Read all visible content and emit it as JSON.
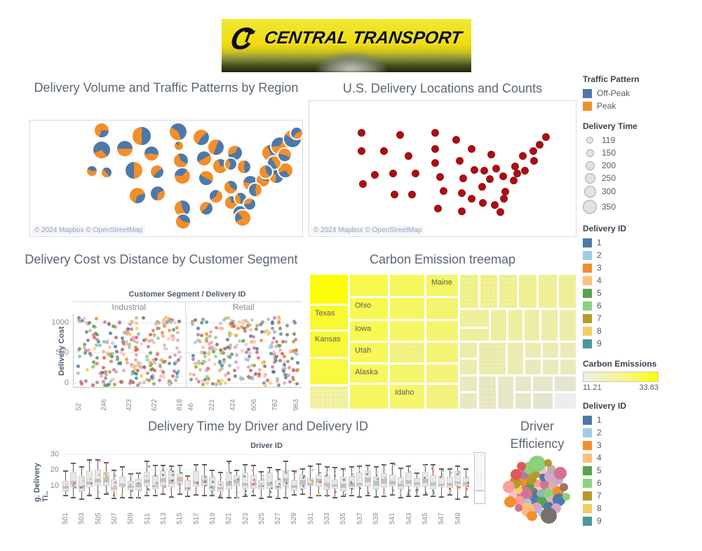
{
  "logo": {
    "brand": "CENTRAL TRANSPORT",
    "monogram": "CT"
  },
  "palette": [
    "#4e79a7",
    "#a0cbe8",
    "#f28e2b",
    "#ffbe7d",
    "#59a14f",
    "#8cd17d",
    "#b6992d",
    "#f1ce63",
    "#499894",
    "#86bcb6",
    "#e15759",
    "#ff9d9a",
    "#79706e",
    "#bab0ac",
    "#d37295",
    "#fabfd2",
    "#b07aa1",
    "#d4a6c8",
    "#9d7660",
    "#d7b5a6"
  ],
  "legends": {
    "traffic_pattern": {
      "title": "Traffic Pattern",
      "items": [
        {
          "label": "Off-Peak",
          "color": "#4e79a7"
        },
        {
          "label": "Peak",
          "color": "#f28e2b"
        }
      ]
    },
    "delivery_time": {
      "title": "Delivery Time",
      "items": [
        {
          "label": "119",
          "d": 10
        },
        {
          "label": "150",
          "d": 11
        },
        {
          "label": "200",
          "d": 13
        },
        {
          "label": "250",
          "d": 15
        },
        {
          "label": "300",
          "d": 17
        },
        {
          "label": "350",
          "d": 20
        }
      ]
    },
    "delivery_id": {
      "title": "Delivery ID",
      "items": [
        {
          "label": "1",
          "color": "#4e79a7"
        },
        {
          "label": "2",
          "color": "#a0cbe8"
        },
        {
          "label": "3",
          "color": "#f28e2b"
        },
        {
          "label": "4",
          "color": "#ffbe7d"
        },
        {
          "label": "5",
          "color": "#59a14f"
        },
        {
          "label": "6",
          "color": "#8cd17d"
        },
        {
          "label": "7",
          "color": "#b6992d"
        },
        {
          "label": "8",
          "color": "#f1ce63"
        },
        {
          "label": "9",
          "color": "#499894"
        }
      ]
    },
    "carbon_emissions": {
      "title": "Carbon Emissions",
      "min": "11.21",
      "max": "33.83",
      "gradient": [
        "#eeeee6",
        "#ffff00"
      ]
    },
    "delivery_id_2": {
      "title": "Delivery ID",
      "items": [
        {
          "label": "1",
          "color": "#4e79a7"
        },
        {
          "label": "2",
          "color": "#a0cbe8"
        },
        {
          "label": "3",
          "color": "#f28e2b"
        },
        {
          "label": "4",
          "color": "#ffbe7d"
        },
        {
          "label": "5",
          "color": "#59a14f"
        },
        {
          "label": "6",
          "color": "#8cd17d"
        },
        {
          "label": "7",
          "color": "#b6992d"
        },
        {
          "label": "8",
          "color": "#f1ce63"
        },
        {
          "label": "9",
          "color": "#499894"
        }
      ]
    }
  },
  "chart_data": [
    {
      "type": "pie-map",
      "title": "Delivery Volume and Traffic Patterns by Region",
      "attribution": "© 2024 Mapbox © OpenStreetMap",
      "legend": [
        "Off-Peak",
        "Peak"
      ],
      "colors": {
        "peak": "#f28e2b",
        "offpeak": "#4e79a7"
      },
      "size_encoding": {
        "field": "Delivery Time",
        "range": [
          119,
          350
        ]
      },
      "pies": [
        [
          100,
          12,
          10,
          0.7,
          200
        ],
        [
          157,
          20,
          13,
          0.5,
          180
        ],
        [
          209,
          14,
          12,
          0.4,
          160
        ],
        [
          242,
          22,
          11,
          0.55,
          210
        ],
        [
          100,
          40,
          12,
          0.3,
          140
        ],
        [
          133,
          38,
          11,
          0.5,
          90
        ],
        [
          171,
          45,
          10,
          0.45,
          100
        ],
        [
          210,
          34,
          6,
          0.85,
          0
        ],
        [
          263,
          36,
          11,
          0.5,
          200
        ],
        [
          290,
          44,
          10,
          0.38,
          250
        ],
        [
          340,
          44,
          11,
          0.52,
          150
        ],
        [
          354,
          34,
          12,
          0.65,
          30
        ],
        [
          372,
          24,
          12,
          0.42,
          300
        ],
        [
          378,
          16,
          8,
          0.45,
          60
        ],
        [
          213,
          55,
          10,
          0.6,
          120
        ],
        [
          246,
          52,
          10,
          0.5,
          60
        ],
        [
          269,
          63,
          10,
          0.7,
          90
        ],
        [
          284,
          60,
          8,
          0.35,
          200
        ],
        [
          303,
          64,
          9,
          0.55,
          170
        ],
        [
          86,
          70,
          7,
          0.6,
          80
        ],
        [
          107,
          72,
          7,
          0.45,
          150
        ],
        [
          146,
          69,
          12,
          0.5,
          0
        ],
        [
          179,
          71,
          9,
          0.55,
          220
        ],
        [
          215,
          77,
          11,
          0.65,
          40
        ],
        [
          249,
          80,
          10,
          0.5,
          300
        ],
        [
          284,
          93,
          9,
          0.6,
          120
        ],
        [
          312,
          87,
          10,
          0.55,
          80
        ],
        [
          330,
          83,
          9,
          0.75,
          100
        ],
        [
          319,
          97,
          9,
          0.45,
          10
        ],
        [
          349,
          77,
          10,
          0.35,
          190
        ],
        [
          362,
          69,
          10,
          0.7,
          250
        ],
        [
          346,
          58,
          9,
          0.5,
          330
        ],
        [
          334,
          71,
          9,
          0.6,
          140
        ],
        [
          361,
          47,
          9,
          0.55,
          280
        ],
        [
          151,
          105,
          11,
          0.65,
          200
        ],
        [
          180,
          102,
          10,
          0.35,
          60
        ],
        [
          215,
          123,
          11,
          0.55,
          150
        ],
        [
          249,
          123,
          9,
          0.45,
          230
        ],
        [
          263,
          106,
          9,
          0.6,
          20
        ],
        [
          285,
          115,
          9,
          0.7,
          90
        ],
        [
          298,
          109,
          8,
          0.4,
          180
        ],
        [
          311,
          117,
          8,
          0.35,
          270
        ],
        [
          297,
          129,
          9,
          0.55,
          60
        ],
        [
          216,
          142,
          10,
          0.6,
          100
        ],
        [
          301,
          137,
          11,
          0.78,
          320
        ]
      ]
    },
    {
      "type": "scatter-map",
      "title": "U.S. Delivery Locations and Counts",
      "attribution": "© 2024 Mapbox © OpenStreetMap",
      "dot_color": "#a50f15",
      "dots": [
        [
          74,
          45
        ],
        [
          129,
          48
        ],
        [
          179,
          45
        ],
        [
          209,
          55
        ],
        [
          74,
          71
        ],
        [
          106,
          71
        ],
        [
          141,
          78
        ],
        [
          179,
          68
        ],
        [
          231,
          68
        ],
        [
          259,
          76
        ],
        [
          179,
          88
        ],
        [
          214,
          85
        ],
        [
          304,
          78
        ],
        [
          319,
          71
        ],
        [
          328,
          62
        ],
        [
          337,
          51
        ],
        [
          93,
          105
        ],
        [
          119,
          103
        ],
        [
          151,
          103
        ],
        [
          186,
          108
        ],
        [
          219,
          110
        ],
        [
          235,
          98
        ],
        [
          249,
          99
        ],
        [
          266,
          96
        ],
        [
          276,
          107
        ],
        [
          293,
          93
        ],
        [
          296,
          103
        ],
        [
          307,
          99
        ],
        [
          320,
          85
        ],
        [
          76,
          118
        ],
        [
          257,
          111
        ],
        [
          291,
          113
        ],
        [
          121,
          133
        ],
        [
          146,
          133
        ],
        [
          191,
          128
        ],
        [
          217,
          131
        ],
        [
          231,
          139
        ],
        [
          247,
          145
        ],
        [
          264,
          148
        ],
        [
          277,
          139
        ],
        [
          279,
          129
        ],
        [
          246,
          122
        ],
        [
          183,
          153
        ],
        [
          217,
          157
        ],
        [
          272,
          158
        ]
      ]
    },
    {
      "type": "scatter",
      "title": "Delivery Cost vs Distance by Customer Segment",
      "facet_header": "Customer Segment  /  Delivery ID",
      "ylabel": "Delivery Cost",
      "y_ticks": [
        "1000",
        "500",
        "0"
      ],
      "ylim": [
        0,
        1000
      ],
      "color_field": "Delivery ID (1-9)",
      "panels": [
        {
          "label": "Industrial",
          "x_ticks": [
            "52",
            "246",
            "423",
            "622",
            "818"
          ],
          "point_count": 270,
          "seed": 7
        },
        {
          "label": "Retail",
          "x_ticks": [
            "46",
            "221",
            "424",
            "606",
            "782",
            "963"
          ],
          "point_count": 270,
          "seed": 13
        }
      ]
    },
    {
      "type": "treemap",
      "title": "Carbon Emission treemap",
      "color_field": "Carbon Emissions",
      "color_range": [
        11.21,
        33.83
      ],
      "labeled_states": [
        "Texas",
        "Kansas",
        "Ohio",
        "Iowa",
        "Utah",
        "Alaska",
        "Maine",
        "Idaho"
      ],
      "cells": [
        [
          1,
          1,
          56,
          43,
          "#fdfd08",
          "",
          0
        ],
        [
          1,
          45,
          56,
          36,
          "#f9f932",
          "Texas",
          0
        ],
        [
          1,
          82,
          56,
          38,
          "#f9f93a",
          "Kansas",
          0
        ],
        [
          1,
          121,
          56,
          38,
          "#f9f942",
          "",
          0
        ],
        [
          1,
          160,
          56,
          34,
          "#f2f2a2",
          "",
          1
        ],
        [
          58,
          1,
          56,
          32,
          "#f8f84e",
          "",
          0
        ],
        [
          58,
          34,
          56,
          32,
          "#f8f850",
          "Ohio",
          0
        ],
        [
          58,
          67,
          56,
          30,
          "#f8f854",
          "Iowa",
          0
        ],
        [
          58,
          98,
          56,
          30,
          "#f8f858",
          "Utah",
          0
        ],
        [
          58,
          129,
          56,
          28,
          "#f7f75c",
          "Alaska",
          0
        ],
        [
          58,
          158,
          56,
          36,
          "#f6f660",
          "",
          0
        ],
        [
          115,
          1,
          51,
          32,
          "#f6f65e",
          "",
          0
        ],
        [
          115,
          34,
          51,
          32,
          "#f6f662",
          "",
          0
        ],
        [
          115,
          67,
          51,
          30,
          "#f6f666",
          "",
          0
        ],
        [
          115,
          98,
          51,
          30,
          "#f2f284",
          "",
          1
        ],
        [
          115,
          129,
          51,
          28,
          "#f5f56c",
          "",
          0
        ],
        [
          115,
          158,
          51,
          36,
          "#f5f56e",
          "Idaho",
          0
        ],
        [
          167,
          1,
          47,
          32,
          "#f5f568",
          "Maine",
          0
        ],
        [
          167,
          34,
          47,
          32,
          "#f4f46e",
          "",
          0
        ],
        [
          167,
          67,
          47,
          30,
          "#f4f472",
          "",
          0
        ],
        [
          167,
          98,
          47,
          30,
          "#f4f476",
          "",
          0
        ],
        [
          167,
          129,
          47,
          28,
          "#f3f37a",
          "",
          0
        ],
        [
          167,
          158,
          47,
          36,
          "#f2f27e",
          "",
          0
        ],
        [
          215,
          1,
          28,
          49,
          "#f1f18e",
          "",
          1
        ],
        [
          244,
          1,
          26,
          49,
          "#f1f190",
          "",
          1
        ],
        [
          271,
          1,
          27,
          49,
          "#f0f094",
          "",
          1
        ],
        [
          299,
          1,
          27,
          49,
          "#f0f096",
          "",
          0
        ],
        [
          327,
          1,
          28,
          49,
          "#efef98",
          "",
          0
        ],
        [
          356,
          1,
          26,
          49,
          "#efef9a",
          "",
          0
        ],
        [
          215,
          51,
          43,
          26,
          "#efef9d",
          "",
          0
        ],
        [
          215,
          78,
          43,
          19,
          "#eeee9f",
          "",
          0
        ],
        [
          259,
          51,
          24,
          46,
          "#eeeea1",
          "",
          0
        ],
        [
          284,
          51,
          22,
          46,
          "#eeeea3",
          "",
          0
        ],
        [
          307,
          51,
          23,
          46,
          "#ededa5",
          "",
          0
        ],
        [
          331,
          51,
          25,
          46,
          "#ededa7",
          "",
          0
        ],
        [
          357,
          51,
          25,
          46,
          "#ededa9",
          "",
          0
        ],
        [
          215,
          98,
          26,
          23,
          "#ececab",
          "",
          0
        ],
        [
          215,
          122,
          26,
          23,
          "#ececad",
          "",
          0
        ],
        [
          242,
          98,
          40,
          47,
          "#ececaf",
          "",
          1
        ],
        [
          283,
          98,
          24,
          47,
          "#ebebb1",
          "",
          0
        ],
        [
          308,
          98,
          24,
          23,
          "#ebebb3",
          "",
          0
        ],
        [
          333,
          98,
          24,
          23,
          "#ebebb5",
          "",
          0
        ],
        [
          358,
          98,
          24,
          23,
          "#eaeab7",
          "",
          0
        ],
        [
          308,
          122,
          24,
          23,
          "#eaeab9",
          "",
          0
        ],
        [
          333,
          122,
          24,
          23,
          "#eaeabb",
          "",
          0
        ],
        [
          358,
          122,
          24,
          23,
          "#e9e9bd",
          "",
          0
        ],
        [
          215,
          146,
          26,
          23,
          "#e9e9bf",
          "",
          0
        ],
        [
          215,
          170,
          26,
          24,
          "#e8e8c1",
          "",
          0
        ],
        [
          242,
          146,
          26,
          48,
          "#e8e8c3",
          "",
          1
        ],
        [
          269,
          146,
          24,
          48,
          "#e7e7c5",
          "",
          0
        ],
        [
          294,
          146,
          24,
          23,
          "#e7e7c7",
          "",
          0
        ],
        [
          294,
          170,
          24,
          24,
          "#e6e6c9",
          "",
          0
        ],
        [
          319,
          146,
          30,
          23,
          "#e6e6cb",
          "",
          0
        ],
        [
          350,
          146,
          32,
          23,
          "#e5e5cd",
          "",
          0
        ],
        [
          319,
          170,
          30,
          24,
          "#e4e4cf",
          "",
          0
        ],
        [
          350,
          170,
          32,
          24,
          "#ededed",
          "",
          0
        ]
      ]
    },
    {
      "type": "boxplot",
      "title": "Delivery Time by Driver and Delivery ID",
      "xlabel": "Driver ID",
      "ylabel": "g. Delivery Ti..",
      "y_ticks": [
        "30",
        "20",
        "10"
      ],
      "ylim": [
        0,
        33
      ],
      "categories": [
        "501",
        "503",
        "505",
        "507",
        "509",
        "511",
        "513",
        "515",
        "517",
        "519",
        "521",
        "523",
        "525",
        "527",
        "529",
        "531",
        "533",
        "535",
        "537",
        "539",
        "541",
        "543",
        "545",
        "547",
        "549"
      ],
      "box_count": 50,
      "seed": 3
    },
    {
      "type": "packed-bubbles",
      "title": "Driver Efficiency",
      "count": 46,
      "seed": 5
    }
  ]
}
